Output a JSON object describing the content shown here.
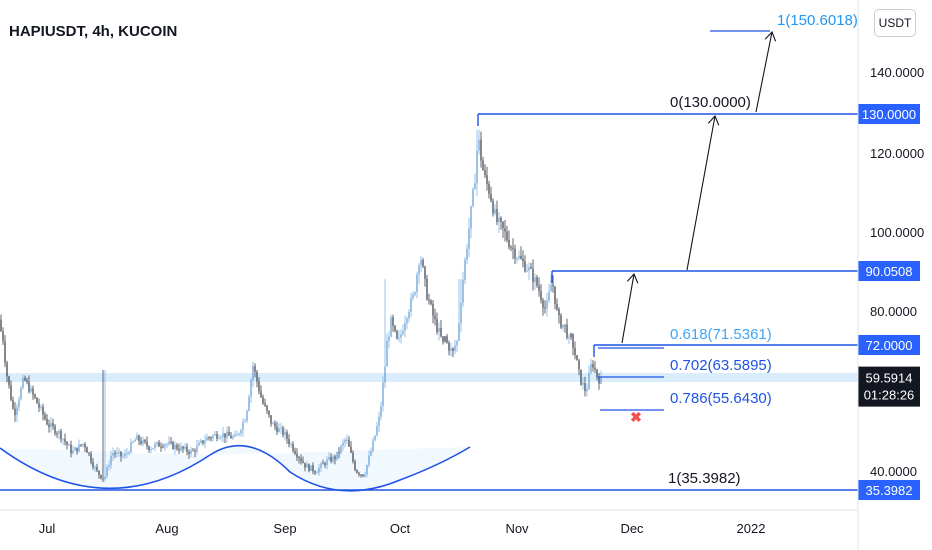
{
  "header": {
    "title": "HAPIUSDT, 4h, KUCOIN",
    "currency": "USDT"
  },
  "chart_data": {
    "type": "candlestick",
    "symbol": "HAPIUSDT",
    "interval": "4h",
    "exchange": "KUCOIN",
    "x_tick_labels": [
      "Jul",
      "Aug",
      "Sep",
      "Oct",
      "Nov",
      "Dec",
      "2022"
    ],
    "y_tick_labels": [
      "140.0000",
      "120.0000",
      "100.0000",
      "80.0000",
      "40.0000"
    ],
    "y_ticks": [
      140,
      120,
      100,
      80,
      40
    ],
    "last_price": "59.5914",
    "countdown": "01:28:26",
    "price_levels": [
      {
        "value": 130.0,
        "label": "130.0000"
      },
      {
        "value": 90.0508,
        "label": "90.0508"
      },
      {
        "value": 72.0,
        "label": "72.0000"
      },
      {
        "value": 35.3982,
        "label": "35.3982"
      }
    ],
    "fib_levels": [
      {
        "label": "1(150.6018)",
        "value": 150.6018
      },
      {
        "label": "0(130.0000)",
        "value": 130.0
      },
      {
        "label": "0.618(71.5361)",
        "value": 71.5361
      },
      {
        "label": "0.702(63.5895)",
        "value": 63.5895
      },
      {
        "label": "0.786(55.6430)",
        "value": 55.643
      },
      {
        "label": "1(35.3982)",
        "value": 35.3982
      }
    ],
    "price_path": [
      [
        0,
        78
      ],
      [
        6,
        62
      ],
      [
        14,
        52
      ],
      [
        24,
        60
      ],
      [
        36,
        55
      ],
      [
        48,
        50
      ],
      [
        60,
        48
      ],
      [
        72,
        44
      ],
      [
        84,
        46
      ],
      [
        96,
        40
      ],
      [
        104,
        38
      ],
      [
        112,
        44
      ],
      [
        124,
        43
      ],
      [
        136,
        47
      ],
      [
        150,
        45
      ],
      [
        164,
        46
      ],
      [
        178,
        45
      ],
      [
        192,
        44
      ],
      [
        206,
        47
      ],
      [
        220,
        48
      ],
      [
        236,
        47
      ],
      [
        246,
        52
      ],
      [
        253,
        63
      ],
      [
        262,
        55
      ],
      [
        272,
        50
      ],
      [
        284,
        48
      ],
      [
        296,
        44
      ],
      [
        306,
        41
      ],
      [
        316,
        40
      ],
      [
        326,
        42
      ],
      [
        336,
        43
      ],
      [
        346,
        47
      ],
      [
        356,
        40
      ],
      [
        364,
        39
      ],
      [
        372,
        45
      ],
      [
        380,
        52
      ],
      [
        385,
        63
      ],
      [
        390,
        78
      ],
      [
        398,
        72
      ],
      [
        406,
        79
      ],
      [
        414,
        84
      ],
      [
        420,
        95
      ],
      [
        426,
        85
      ],
      [
        434,
        78
      ],
      [
        442,
        73
      ],
      [
        448,
        68
      ],
      [
        454,
        66
      ],
      [
        458,
        75
      ],
      [
        462,
        86
      ],
      [
        468,
        99
      ],
      [
        474,
        111
      ],
      [
        478,
        124
      ],
      [
        484,
        114
      ],
      [
        490,
        110
      ],
      [
        496,
        103
      ],
      [
        504,
        100
      ],
      [
        512,
        96
      ],
      [
        520,
        93
      ],
      [
        530,
        90
      ],
      [
        538,
        86
      ],
      [
        546,
        80
      ],
      [
        552,
        88
      ],
      [
        558,
        78
      ],
      [
        566,
        76
      ],
      [
        574,
        67
      ],
      [
        580,
        60
      ],
      [
        586,
        57
      ],
      [
        592,
        64
      ],
      [
        598,
        60
      ],
      [
        602,
        59.6
      ]
    ]
  }
}
